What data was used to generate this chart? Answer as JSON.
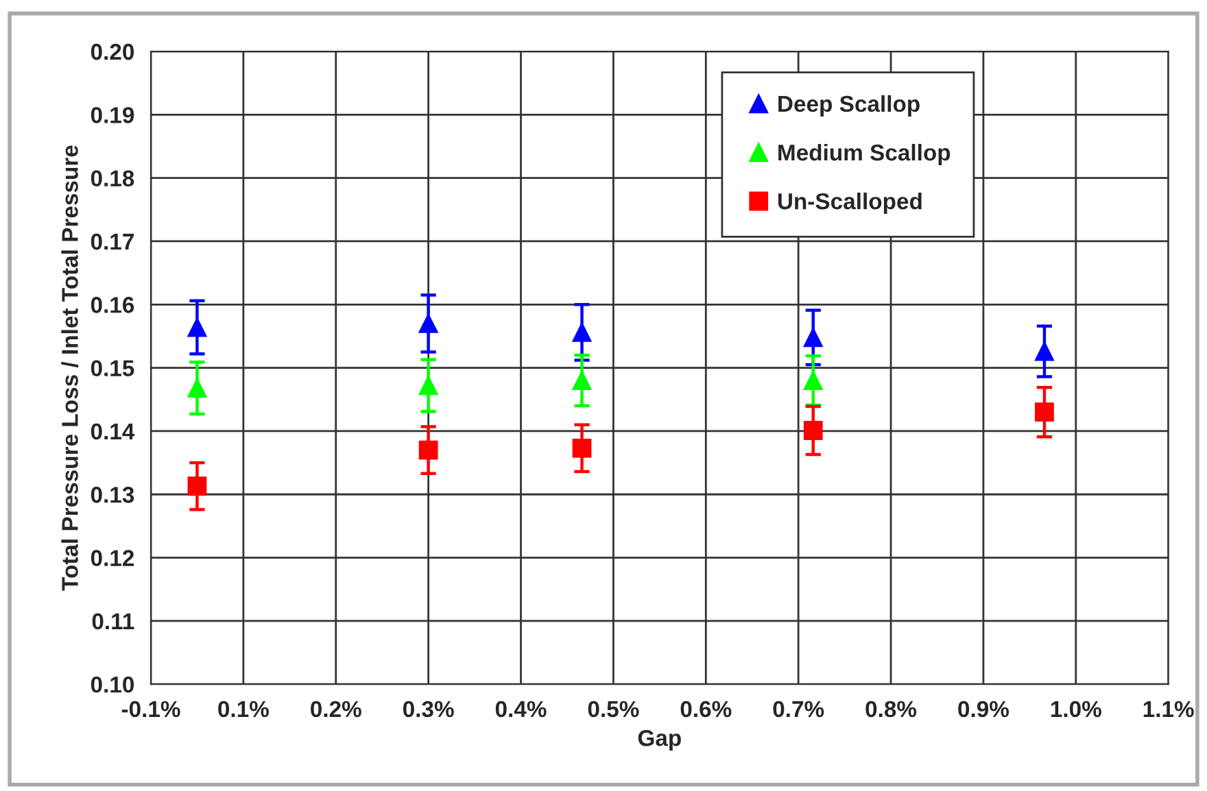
{
  "chart_data": {
    "type": "scatter",
    "xlabel": "Gap",
    "ylabel": "Total Pressure Loss / Inlet Total Pressure",
    "x": [
      0.0,
      0.25,
      0.416,
      0.666,
      0.916
    ],
    "series": [
      {
        "name": "Deep Scallop",
        "color": "#0000ff",
        "marker": "triangle",
        "values": [
          0.1564,
          0.157,
          0.1556,
          0.1548,
          0.1526
        ],
        "errors": [
          0.0042,
          0.0045,
          0.0044,
          0.0043,
          0.004
        ]
      },
      {
        "name": "Medium Scallop",
        "color": "#00ff00",
        "marker": "triangle",
        "values": [
          0.1468,
          0.1472,
          0.148,
          0.148,
          null
        ],
        "errors": [
          0.0041,
          0.0041,
          0.004,
          0.0039,
          null
        ]
      },
      {
        "name": "Un-Scalloped",
        "color": "#ff0000",
        "marker": "square",
        "values": [
          0.1313,
          0.137,
          0.1373,
          0.1401,
          0.143
        ],
        "errors": [
          0.0037,
          0.0037,
          0.0037,
          0.0038,
          0.0039
        ]
      }
    ],
    "xlim": [
      -0.05,
      1.05
    ],
    "xticks": [
      {
        "value": -0.05,
        "label": "-0.1%"
      },
      {
        "value": 0.05,
        "label": "0.1%"
      },
      {
        "value": 0.15,
        "label": "0.2%"
      },
      {
        "value": 0.25,
        "label": "0.3%"
      },
      {
        "value": 0.35,
        "label": "0.4%"
      },
      {
        "value": 0.45,
        "label": "0.5%"
      },
      {
        "value": 0.55,
        "label": "0.6%"
      },
      {
        "value": 0.65,
        "label": "0.7%"
      },
      {
        "value": 0.75,
        "label": "0.8%"
      },
      {
        "value": 0.85,
        "label": "0.9%"
      },
      {
        "value": 0.95,
        "label": "1.0%"
      },
      {
        "value": 1.05,
        "label": "1.1%"
      }
    ],
    "ylim": [
      0.1,
      0.2
    ],
    "yticks": [
      {
        "value": 0.1,
        "label": "0.10"
      },
      {
        "value": 0.11,
        "label": "0.11"
      },
      {
        "value": 0.12,
        "label": "0.12"
      },
      {
        "value": 0.13,
        "label": "0.13"
      },
      {
        "value": 0.14,
        "label": "0.14"
      },
      {
        "value": 0.15,
        "label": "0.15"
      },
      {
        "value": 0.16,
        "label": "0.16"
      },
      {
        "value": 0.17,
        "label": "0.17"
      },
      {
        "value": 0.18,
        "label": "0.18"
      },
      {
        "value": 0.19,
        "label": "0.19"
      },
      {
        "value": 0.2,
        "label": "0.20"
      }
    ],
    "grid": true,
    "legend": "top right"
  }
}
